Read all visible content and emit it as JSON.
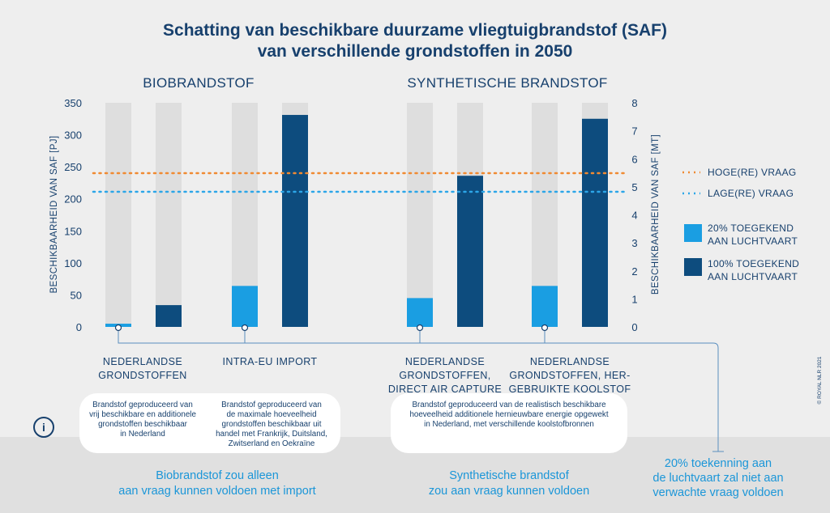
{
  "title": {
    "line1": "Schatting van beschikbare duurzame vliegtuigbrandstof (SAF)",
    "line2": "van verschillende grondstoffen in 2050"
  },
  "groups": [
    {
      "label": "BIOBRANDSTOF"
    },
    {
      "label": "SYNTHETISCHE BRANDSTOF"
    }
  ],
  "legend": {
    "high_demand": "HOGE(RE) VRAAG",
    "low_demand": "LAGE(RE) VRAAG",
    "share20_line1": "20% TOEGEKEND",
    "share20_line2": "AAN LUCHTVAART",
    "share100_line1": "100% TOEGEKEND",
    "share100_line2": "AAN LUCHTVAART"
  },
  "chart_data": {
    "type": "bar",
    "ylabel": "BESCHIKBAARHEID VAN SAF [PJ]",
    "y2label": "BESCHIKBAARHEID VAN SAF [MT]",
    "ylim": [
      0,
      350
    ],
    "y2lim": [
      0,
      8
    ],
    "yticks": [
      "0",
      "50",
      "100",
      "150",
      "200",
      "250",
      "300",
      "350"
    ],
    "y2ticks": [
      "0",
      "1",
      "2",
      "3",
      "4",
      "5",
      "6",
      "7",
      "8"
    ],
    "categories": [
      {
        "line1": "NEDERLANDSE",
        "line2": "GRONDSTOFFEN",
        "line3": ""
      },
      {
        "line1": "INTRA-EU IMPORT",
        "line2": "",
        "line3": ""
      },
      {
        "line1": "NEDERLANDSE",
        "line2": "GRONDSTOFFEN,",
        "line3": "DIRECT AIR CAPTURE"
      },
      {
        "line1": "NEDERLANDSE",
        "line2": "GRONDSTOFFEN, HER-",
        "line3": "GEBRUIKTE KOOLSTOF"
      }
    ],
    "series": [
      {
        "name": "20% TOEGEKEND AAN LUCHTVAART",
        "color": "#1a9ee2",
        "values": [
          5,
          64,
          45,
          64
        ]
      },
      {
        "name": "100% TOEGEKEND AAN LUCHTVAART",
        "color": "#0d4c7e",
        "values": [
          34,
          331,
          236,
          325
        ]
      }
    ],
    "background_color": "#dedede",
    "reference_lines": [
      {
        "name": "HOGE(RE) VRAAG",
        "value": 240,
        "color": "#f08a32"
      },
      {
        "name": "LAGE(RE) VRAAG",
        "value": 211,
        "color": "#2ca6e8"
      }
    ],
    "grid": false,
    "legend_position": "right"
  },
  "descriptions": [
    {
      "line1": "Brandstof geproduceerd van",
      "line2": "vrij beschikbare en additionele",
      "line3": "grondstoffen beschikbaar",
      "line4": "in Nederland"
    },
    {
      "line1": "Brandstof geproduceerd van",
      "line2": "de maximale hoeveelheid",
      "line3": "grondstoffen beschikbaar uit",
      "line4": "handel met Frankrijk, Duitsland,",
      "line5": "Zwitserland en Oekraïne"
    },
    {
      "line1": "Brandstof geproduceerd van de realistisch beschikbare",
      "line2": "hoeveelheid additionele hernieuwbare energie opgewekt",
      "line3": "in Nederland, met verschillende koolstofbronnen"
    }
  ],
  "conclusions": [
    {
      "line1": "Biobrandstof zou alleen",
      "line2": "aan vraag kunnen voldoen met import"
    },
    {
      "line1": "Synthetische brandstof",
      "line2": "zou aan vraag kunnen voldoen"
    },
    {
      "line1": "20% toekenning aan",
      "line2": "de luchtvaart zal niet aan",
      "line3": "verwachte vraag voldoen"
    }
  ],
  "info_icon": {
    "glyph": "i",
    "icon": "info-icon"
  },
  "credit": "© ROYAL NLR 2021",
  "colors": {
    "title": "#17406d",
    "conclusion_text": "#1b96d8",
    "background": "#eeeeee",
    "bottom_band": "#e0e0e0"
  }
}
